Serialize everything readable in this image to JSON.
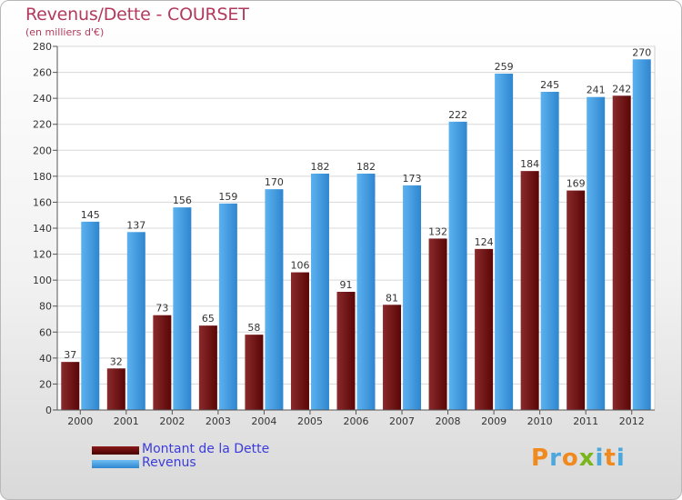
{
  "title": "Revenus/Dette - COURSET",
  "subtitle": "(en milliers d'€)",
  "colors": {
    "dette": "#7a1518",
    "revenus": "#3f9ee6",
    "title": "#b23a5e",
    "legend_text": "#3b3bdc"
  },
  "legend": [
    {
      "label": "Montant de la Dette",
      "color": "#6e0b0b"
    },
    {
      "label": "Revenus",
      "color": "#3f9ee6"
    }
  ],
  "logo": {
    "letters": [
      "P",
      "r",
      "o",
      "x",
      "i",
      "t",
      "i"
    ],
    "colors": [
      "#f08a1e",
      "#4aa8de",
      "#f08a1e",
      "#7ab51d",
      "#4aa8de",
      "#f08a1e",
      "#4aa8de"
    ]
  },
  "chart_data": {
    "type": "bar",
    "title": "Revenus/Dette - COURSET",
    "subtitle": "(en milliers d'€)",
    "xlabel": "",
    "ylabel": "",
    "ylim": [
      0,
      280
    ],
    "ytick_step": 20,
    "grid": true,
    "legend_position": "bottom-left",
    "categories": [
      "2000",
      "2001",
      "2002",
      "2003",
      "2004",
      "2005",
      "2006",
      "2007",
      "2008",
      "2009",
      "2010",
      "2011",
      "2012"
    ],
    "series": [
      {
        "name": "Montant de la Dette",
        "values": [
          37,
          32,
          73,
          65,
          58,
          106,
          91,
          81,
          132,
          124,
          184,
          169,
          242
        ]
      },
      {
        "name": "Revenus",
        "values": [
          145,
          137,
          156,
          159,
          170,
          182,
          182,
          173,
          222,
          259,
          245,
          241,
          270
        ]
      }
    ]
  }
}
